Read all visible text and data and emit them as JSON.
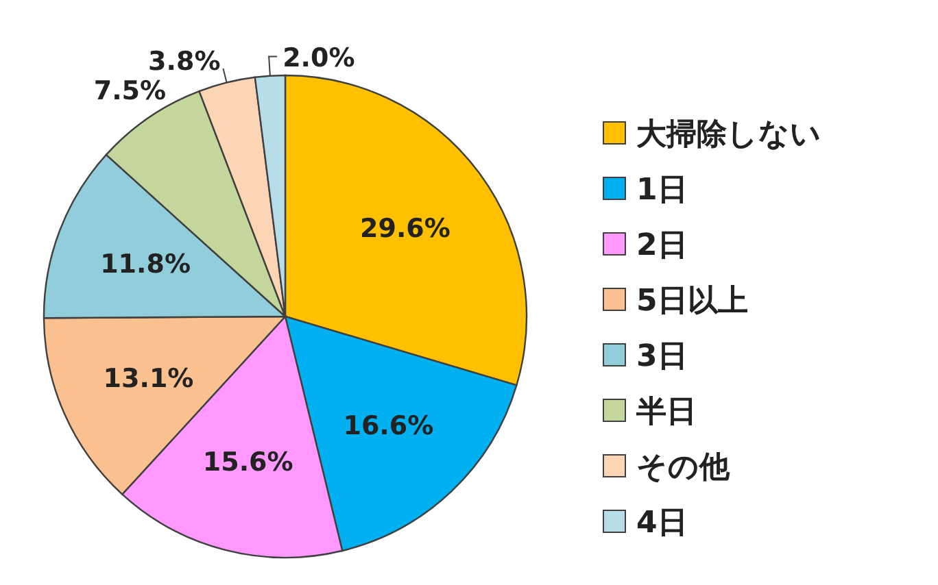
{
  "chart_data": {
    "type": "pie",
    "categories": [
      "大掃除しない",
      "1日",
      "2日",
      "5日以上",
      "3日",
      "半日",
      "その他",
      "4日"
    ],
    "values": [
      29.6,
      16.6,
      15.6,
      13.1,
      11.8,
      7.5,
      3.8,
      2.0
    ],
    "colors": [
      "#ffc000",
      "#00b0f0",
      "#ff99ff",
      "#fac090",
      "#92cddc",
      "#c3d69b",
      "#fcd5b5",
      "#b7dee8"
    ],
    "value_labels": [
      "29.6%",
      "16.6%",
      "15.6%",
      "13.1%",
      "11.8%",
      "7.5%",
      "3.8%",
      "2.0%"
    ],
    "legend": "right"
  }
}
